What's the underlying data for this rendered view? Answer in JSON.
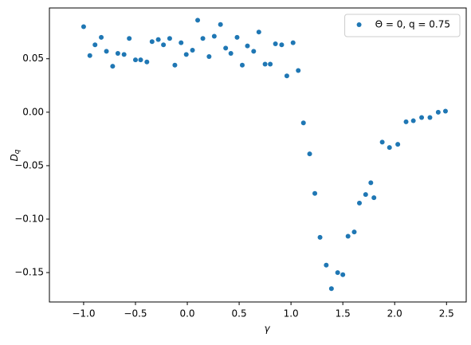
{
  "chart_data": {
    "type": "scatter",
    "xlabel": "γ",
    "ylabel": [
      "D",
      "q"
    ],
    "legend": "upper right",
    "series": [
      {
        "name": "Θ = 0, q = 0.75",
        "color": "#1f77b4",
        "x": [
          -1.0,
          -0.94,
          -0.89,
          -0.83,
          -0.78,
          -0.72,
          -0.67,
          -0.61,
          -0.56,
          -0.5,
          -0.45,
          -0.39,
          -0.34,
          -0.28,
          -0.23,
          -0.17,
          -0.12,
          -0.06,
          -0.01,
          0.05,
          0.1,
          0.15,
          0.21,
          0.26,
          0.32,
          0.37,
          0.42,
          0.48,
          0.53,
          0.58,
          0.64,
          0.69,
          0.75,
          0.8,
          0.85,
          0.91,
          0.96,
          1.02,
          1.07,
          1.12,
          1.18,
          1.23,
          1.28,
          1.34,
          1.39,
          1.45,
          1.5,
          1.55,
          1.61,
          1.66,
          1.72,
          1.77,
          1.8,
          1.88,
          1.95,
          2.03,
          2.11,
          2.18,
          2.26,
          2.34,
          2.42,
          2.49
        ],
        "values": [
          0.08,
          0.053,
          0.063,
          0.07,
          0.057,
          0.043,
          0.055,
          0.054,
          0.069,
          0.049,
          0.049,
          0.047,
          0.066,
          0.068,
          0.063,
          0.069,
          0.044,
          0.065,
          0.054,
          0.058,
          0.086,
          0.069,
          0.052,
          0.071,
          0.082,
          0.06,
          0.055,
          0.07,
          0.044,
          0.062,
          0.057,
          0.075,
          0.045,
          0.045,
          0.064,
          0.063,
          0.034,
          0.065,
          0.039,
          -0.01,
          -0.039,
          -0.076,
          -0.117,
          -0.143,
          -0.165,
          -0.15,
          -0.152,
          -0.116,
          -0.112,
          -0.085,
          -0.077,
          -0.066,
          -0.08,
          -0.028,
          -0.033,
          -0.03,
          -0.009,
          -0.008,
          -0.005,
          -0.005,
          0.0,
          0.001
        ]
      }
    ],
    "xlim": [
      -1.33,
      2.69
    ],
    "ylim": [
      -0.1775,
      0.0975
    ],
    "xticks": [
      {
        "value": -1.0,
        "label": "−1.0"
      },
      {
        "value": -0.5,
        "label": "−0.5"
      },
      {
        "value": 0,
        "label": "0.0"
      },
      0.5,
      {
        "value": 1,
        "label": "1.0"
      },
      1.5,
      {
        "value": 2,
        "label": "2.0"
      },
      2.5
    ],
    "yticks": [
      {
        "value": -0.15,
        "label": "−0.15"
      },
      {
        "value": -0.1,
        "label": "−0.10"
      },
      {
        "value": -0.05,
        "label": "−0.05"
      },
      {
        "value": 0,
        "label": "0.00"
      },
      0.05
    ]
  }
}
